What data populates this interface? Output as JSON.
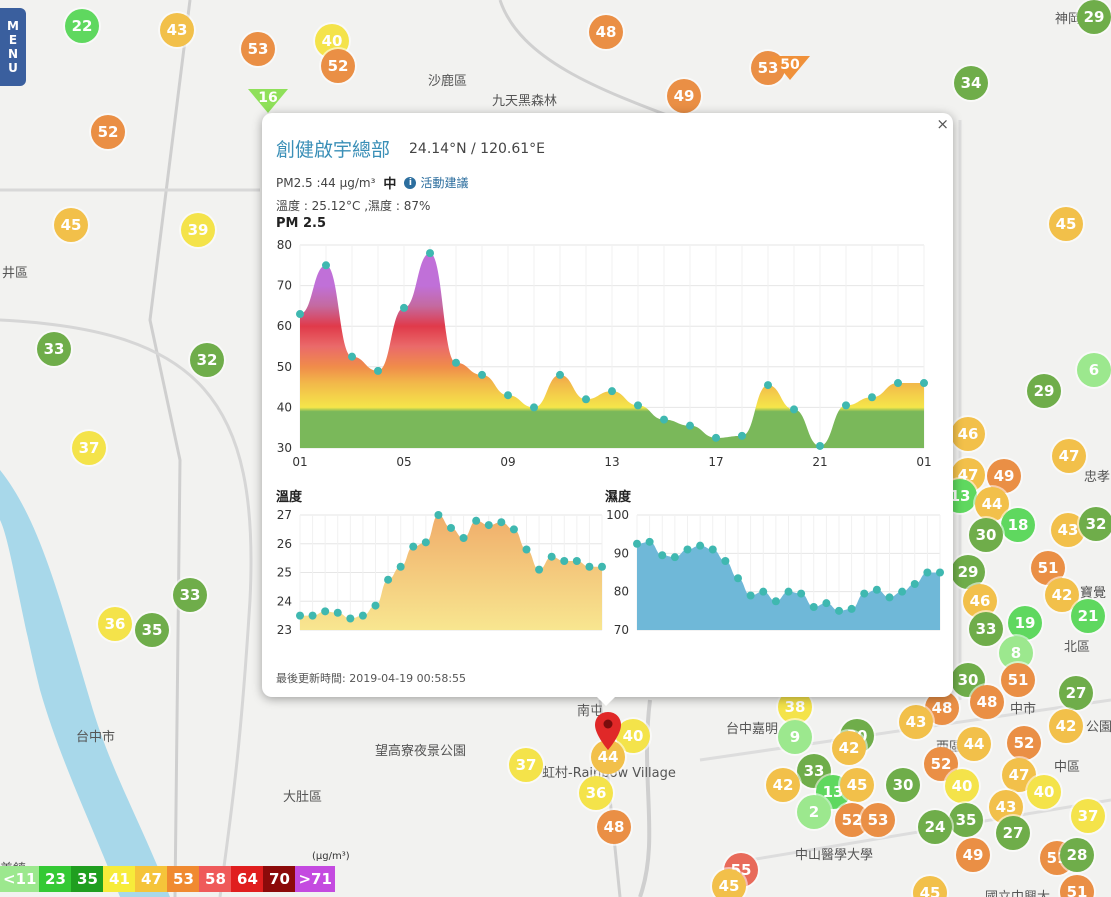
{
  "menu_label": [
    "M",
    "E",
    "N",
    "U"
  ],
  "map": {
    "place_labels": [
      {
        "text": "沙鹿區",
        "x": 428,
        "y": 70
      },
      {
        "text": "九天黑森林",
        "x": 492,
        "y": 90
      },
      {
        "text": "井區",
        "x": 2,
        "y": 262
      },
      {
        "text": "大肚區",
        "x": 283,
        "y": 786
      },
      {
        "text": "望高寮夜景公園",
        "x": 375,
        "y": 740
      },
      {
        "text": "虹村-Rainbow Village",
        "x": 542,
        "y": 762
      },
      {
        "text": "台中嘉明",
        "x": 726,
        "y": 718
      },
      {
        "text": "中山醫學大學",
        "x": 795,
        "y": 844
      },
      {
        "text": "西區",
        "x": 936,
        "y": 736
      },
      {
        "text": "中區",
        "x": 1054,
        "y": 756
      },
      {
        "text": "北區",
        "x": 1064,
        "y": 636
      },
      {
        "text": "寶覺",
        "x": 1080,
        "y": 582
      },
      {
        "text": "中市",
        "x": 1010,
        "y": 698
      },
      {
        "text": "神岡區",
        "x": 1055,
        "y": 8
      },
      {
        "text": "美鎮",
        "x": 0,
        "y": 858
      },
      {
        "text": "南屯",
        "x": 577,
        "y": 700
      },
      {
        "text": "台中市",
        "x": 76,
        "y": 726
      },
      {
        "text": "國立中興大",
        "x": 985,
        "y": 886
      },
      {
        "text": "忠孝",
        "x": 1084,
        "y": 466
      },
      {
        "text": "公園",
        "x": 1086,
        "y": 716
      }
    ],
    "circle_markers": [
      {
        "value": "22",
        "x": 82,
        "y": 26
      },
      {
        "value": "43",
        "x": 177,
        "y": 30
      },
      {
        "value": "53",
        "x": 258,
        "y": 49
      },
      {
        "value": "40",
        "x": 332,
        "y": 41
      },
      {
        "value": "52",
        "x": 338,
        "y": 66
      },
      {
        "value": "48",
        "x": 606,
        "y": 32
      },
      {
        "value": "53",
        "x": 768,
        "y": 68
      },
      {
        "value": "49",
        "x": 684,
        "y": 96
      },
      {
        "value": "34",
        "x": 971,
        "y": 83
      },
      {
        "value": "29",
        "x": 1094,
        "y": 17
      },
      {
        "value": "52",
        "x": 108,
        "y": 132
      },
      {
        "value": "45",
        "x": 71,
        "y": 225
      },
      {
        "value": "39",
        "x": 198,
        "y": 230
      },
      {
        "value": "33",
        "x": 54,
        "y": 349
      },
      {
        "value": "32",
        "x": 207,
        "y": 360
      },
      {
        "value": "45",
        "x": 1066,
        "y": 224
      },
      {
        "value": "37",
        "x": 89,
        "y": 448
      },
      {
        "value": "29",
        "x": 1044,
        "y": 391
      },
      {
        "value": "6",
        "x": 1094,
        "y": 370
      },
      {
        "value": "46",
        "x": 968,
        "y": 434
      },
      {
        "value": "47",
        "x": 1069,
        "y": 456
      },
      {
        "value": "47",
        "x": 968,
        "y": 475
      },
      {
        "value": "49",
        "x": 1004,
        "y": 476
      },
      {
        "value": "13",
        "x": 960,
        "y": 496
      },
      {
        "value": "44",
        "x": 992,
        "y": 504
      },
      {
        "value": "18",
        "x": 1018,
        "y": 525
      },
      {
        "value": "43",
        "x": 1068,
        "y": 530
      },
      {
        "value": "32",
        "x": 1096,
        "y": 524
      },
      {
        "value": "30",
        "x": 986,
        "y": 535
      },
      {
        "value": "29",
        "x": 968,
        "y": 572
      },
      {
        "value": "51",
        "x": 1048,
        "y": 568
      },
      {
        "value": "46",
        "x": 980,
        "y": 601
      },
      {
        "value": "42",
        "x": 1062,
        "y": 595
      },
      {
        "value": "33",
        "x": 986,
        "y": 629
      },
      {
        "value": "19",
        "x": 1025,
        "y": 623
      },
      {
        "value": "21",
        "x": 1088,
        "y": 616
      },
      {
        "value": "8",
        "x": 1016,
        "y": 653
      },
      {
        "value": "33",
        "x": 190,
        "y": 595
      },
      {
        "value": "36",
        "x": 115,
        "y": 624
      },
      {
        "value": "35",
        "x": 152,
        "y": 630
      },
      {
        "value": "30",
        "x": 968,
        "y": 680
      },
      {
        "value": "51",
        "x": 1018,
        "y": 680
      },
      {
        "value": "27",
        "x": 1076,
        "y": 693
      },
      {
        "value": "48",
        "x": 942,
        "y": 708
      },
      {
        "value": "48",
        "x": 987,
        "y": 702
      },
      {
        "value": "43",
        "x": 916,
        "y": 722
      },
      {
        "value": "42",
        "x": 1066,
        "y": 726
      },
      {
        "value": "38",
        "x": 795,
        "y": 707
      },
      {
        "value": "9",
        "x": 795,
        "y": 737
      },
      {
        "value": "30",
        "x": 857,
        "y": 736
      },
      {
        "value": "40",
        "x": 633,
        "y": 736
      },
      {
        "value": "44",
        "x": 974,
        "y": 744
      },
      {
        "value": "52",
        "x": 1024,
        "y": 743
      },
      {
        "value": "42",
        "x": 849,
        "y": 748
      },
      {
        "value": "37",
        "x": 526,
        "y": 765
      },
      {
        "value": "33",
        "x": 814,
        "y": 771
      },
      {
        "value": "52",
        "x": 941,
        "y": 764
      },
      {
        "value": "47",
        "x": 1019,
        "y": 775
      },
      {
        "value": "42",
        "x": 783,
        "y": 785
      },
      {
        "value": "13",
        "x": 833,
        "y": 792
      },
      {
        "value": "45",
        "x": 857,
        "y": 785
      },
      {
        "value": "30",
        "x": 903,
        "y": 785
      },
      {
        "value": "40",
        "x": 962,
        "y": 786
      },
      {
        "value": "40",
        "x": 1044,
        "y": 792
      },
      {
        "value": "36",
        "x": 596,
        "y": 793
      },
      {
        "value": "2",
        "x": 814,
        "y": 812
      },
      {
        "value": "43",
        "x": 1006,
        "y": 807
      },
      {
        "value": "37",
        "x": 1088,
        "y": 816
      },
      {
        "value": "52",
        "x": 852,
        "y": 820
      },
      {
        "value": "53",
        "x": 878,
        "y": 820
      },
      {
        "value": "35",
        "x": 966,
        "y": 820
      },
      {
        "value": "24",
        "x": 935,
        "y": 827
      },
      {
        "value": "27",
        "x": 1013,
        "y": 833
      },
      {
        "value": "48",
        "x": 614,
        "y": 827
      },
      {
        "value": "49",
        "x": 973,
        "y": 855
      },
      {
        "value": "51",
        "x": 1057,
        "y": 858
      },
      {
        "value": "28",
        "x": 1077,
        "y": 855
      },
      {
        "value": "55",
        "x": 741,
        "y": 870
      },
      {
        "value": "45",
        "x": 729,
        "y": 886
      },
      {
        "value": "45",
        "x": 930,
        "y": 893
      },
      {
        "value": "51",
        "x": 1077,
        "y": 892
      }
    ],
    "triangle_markers": [
      {
        "value": "16",
        "x": 268,
        "y": 103,
        "color": "#8fe05a"
      },
      {
        "value": "50",
        "x": 790,
        "y": 70,
        "color": "#f0913a"
      }
    ],
    "selected_marker": {
      "value": "44",
      "x": 608,
      "y": 757
    }
  },
  "popup": {
    "close_label": "×",
    "site_name": "創健啟宇總部",
    "coordinates": "24.14°N / 120.61°E",
    "pm25_reading": "PM2.5 :44 μg/m³",
    "pm25_level": "中",
    "info_icon": "info-icon",
    "advice_link": "活動建議",
    "weather": "溫度 : 25.12°C ,濕度 : 87%",
    "last_updated": "最後更新時間: 2019-04-19 00:58:55"
  },
  "chart_data": [
    {
      "type": "area",
      "title": "PM 2.5",
      "x_tick_labels": [
        "01",
        "05",
        "09",
        "13",
        "17",
        "21",
        "01"
      ],
      "ylim": [
        30,
        80
      ],
      "y_ticks": [
        30,
        40,
        50,
        60,
        70,
        80
      ],
      "grid": true,
      "values": [
        63,
        75,
        52.5,
        49,
        64.5,
        78,
        51,
        48,
        43,
        40,
        48,
        42,
        44,
        40.5,
        37,
        35.5,
        32.5,
        33,
        45.5,
        39.5,
        30.5,
        40.5,
        42.5,
        46,
        46
      ]
    },
    {
      "type": "area",
      "title": "溫度",
      "ylim": [
        23,
        27
      ],
      "y_ticks": [
        23,
        24,
        25,
        26,
        27
      ],
      "grid": true,
      "values": [
        23.5,
        23.5,
        23.65,
        23.6,
        23.4,
        23.5,
        23.85,
        24.75,
        25.2,
        25.9,
        26.05,
        27,
        26.55,
        26.2,
        26.8,
        26.65,
        26.75,
        26.5,
        25.8,
        25.1,
        25.55,
        25.4,
        25.4,
        25.2,
        25.2
      ]
    },
    {
      "type": "area",
      "title": "濕度",
      "ylim": [
        70,
        100
      ],
      "y_ticks": [
        70,
        80,
        90,
        100
      ],
      "grid": true,
      "values": [
        92.5,
        93,
        89.5,
        89,
        91,
        92,
        91,
        88,
        83.5,
        79,
        80,
        77.5,
        80,
        79.5,
        76,
        77,
        75,
        75.5,
        79.5,
        80.5,
        78.5,
        80,
        82,
        85,
        85
      ]
    }
  ],
  "legend": {
    "unit": "(μg/m³)",
    "items": [
      {
        "label": "<11",
        "color": "#9ce88e"
      },
      {
        "label": "23",
        "color": "#34c934"
      },
      {
        "label": "35",
        "color": "#1f9e1f"
      },
      {
        "label": "41",
        "color": "#f7ec3a"
      },
      {
        "label": "47",
        "color": "#f5c43a"
      },
      {
        "label": "53",
        "color": "#f08a30"
      },
      {
        "label": "58",
        "color": "#ef5a5a"
      },
      {
        "label": "64",
        "color": "#e01e1e"
      },
      {
        "label": "70",
        "color": "#8c0a0a"
      },
      {
        "label": ">71",
        "color": "#c44ae0"
      }
    ]
  }
}
